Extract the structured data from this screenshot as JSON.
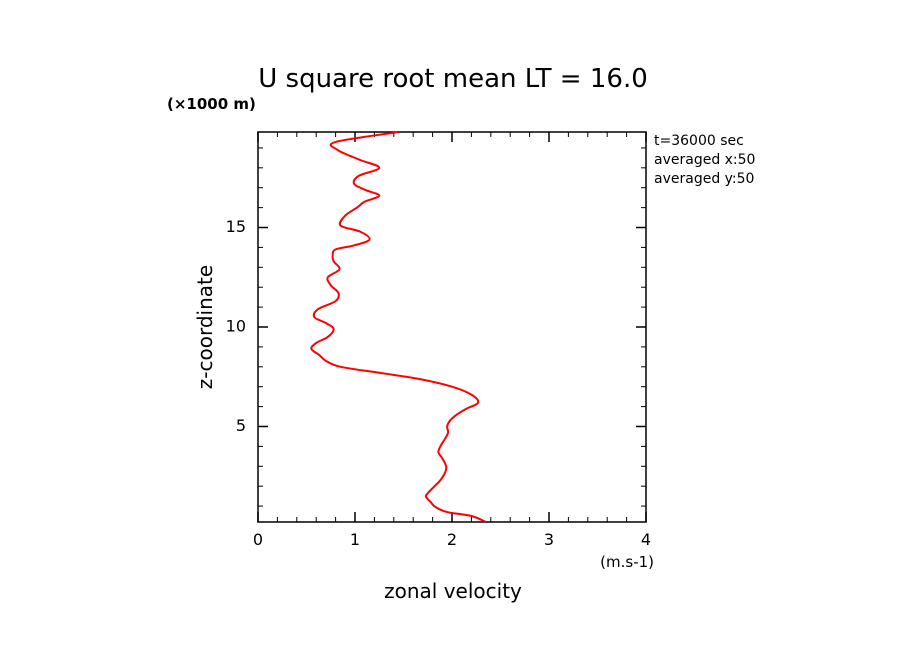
{
  "chart_data": {
    "type": "line",
    "title": "U square root mean LT = 16.0",
    "xlabel": "zonal velocity",
    "ylabel": "z-coordinate",
    "x_unit": "(m.s-1)",
    "y_unit": "(×1000 m)",
    "xlim": [
      0,
      4
    ],
    "ylim": [
      0.2,
      19.8
    ],
    "x_ticks": [
      "0",
      "1",
      "2",
      "3",
      "4"
    ],
    "y_ticks": [
      "5",
      "10",
      "15"
    ],
    "x_tick_values": [
      0,
      1,
      2,
      3,
      4
    ],
    "y_tick_values": [
      5,
      10,
      15
    ],
    "grid": false,
    "annotations": [
      "t=36000 sec",
      "averaged  x:50",
      "averaged  y:50"
    ],
    "line_color": "#ff0000",
    "series": [
      {
        "x": [
          2.35,
          2.2,
          1.95,
          1.83,
          1.78,
          1.75,
          1.73,
          1.76,
          1.82,
          1.88,
          1.93,
          1.94,
          1.9,
          1.86,
          1.88,
          1.93,
          1.96,
          1.95,
          1.98,
          2.05,
          2.15,
          2.27,
          2.2,
          2.0,
          1.65,
          1.25,
          0.85,
          0.7,
          0.63,
          0.55,
          0.6,
          0.72,
          0.78,
          0.7,
          0.58,
          0.62,
          0.8,
          0.83,
          0.75,
          0.72,
          0.84,
          0.78,
          0.77,
          0.8,
          0.99,
          1.15,
          1.05,
          0.85,
          0.9,
          1.02,
          1.1,
          1.25,
          1.1,
          0.99,
          1.04,
          1.25,
          1.05,
          0.82,
          0.8,
          1.45
        ],
        "y": [
          0.2,
          0.5,
          0.7,
          0.95,
          1.2,
          1.35,
          1.5,
          1.7,
          2.0,
          2.3,
          2.7,
          3.0,
          3.4,
          3.7,
          4.0,
          4.4,
          4.7,
          5.0,
          5.3,
          5.6,
          5.9,
          6.2,
          6.6,
          7.0,
          7.4,
          7.7,
          8.0,
          8.3,
          8.6,
          8.9,
          9.2,
          9.5,
          9.9,
          10.2,
          10.5,
          10.9,
          11.3,
          11.7,
          12.1,
          12.5,
          12.9,
          13.3,
          13.6,
          13.9,
          14.1,
          14.4,
          14.8,
          15.1,
          15.6,
          16.0,
          16.3,
          16.6,
          16.9,
          17.2,
          17.6,
          18.0,
          18.4,
          18.9,
          19.3,
          19.8
        ]
      }
    ]
  }
}
